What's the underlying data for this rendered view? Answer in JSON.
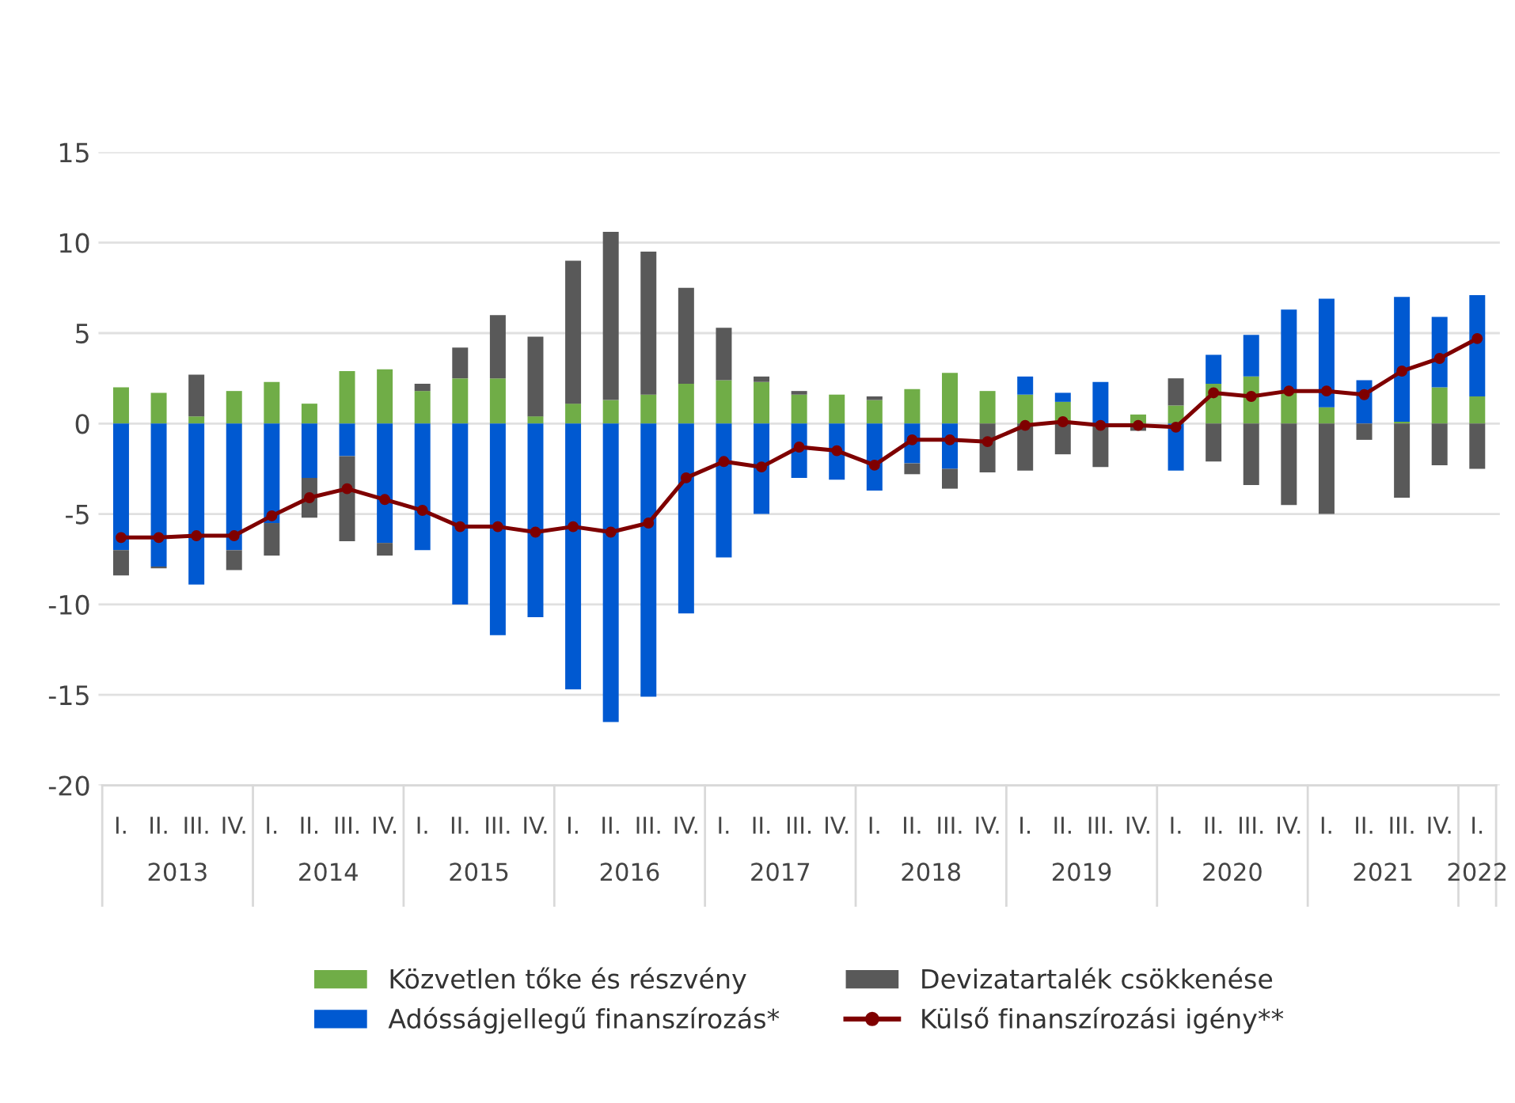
{
  "chart_data": {
    "type": "bar",
    "stacked": true,
    "categories": [
      "I.",
      "II.",
      "III.",
      "IV.",
      "I.",
      "II.",
      "III.",
      "IV.",
      "I.",
      "II.",
      "III.",
      "IV.",
      "I.",
      "II.",
      "III.",
      "IV.",
      "I.",
      "II.",
      "III.",
      "IV.",
      "I.",
      "II.",
      "III.",
      "IV.",
      "I.",
      "II.",
      "III.",
      "IV.",
      "I.",
      "II.",
      "III.",
      "IV.",
      "I.",
      "II.",
      "III.",
      "IV.",
      "I."
    ],
    "annotations": [
      "2013",
      "2014",
      "2015",
      "2016",
      "2017",
      "2018",
      "2019",
      "2020",
      "2021",
      "2022"
    ],
    "series": [
      {
        "name": "Közvetlen tőke és részvény",
        "color": "#70ad47",
        "values": [
          2.0,
          1.7,
          0.4,
          1.8,
          2.3,
          1.1,
          2.9,
          3.0,
          1.8,
          2.5,
          2.5,
          0.4,
          1.1,
          1.3,
          1.6,
          2.2,
          2.4,
          2.3,
          1.6,
          1.6,
          1.3,
          1.9,
          2.8,
          1.8,
          1.6,
          1.2,
          null,
          0.5,
          1.0,
          2.2,
          2.6,
          1.8,
          0.9,
          null,
          0.1,
          2.0,
          1.5
        ]
      },
      {
        "name": "Adósságjellegű finanszírozás*",
        "color": "#0059d1",
        "values": [
          -7.0,
          -7.9,
          -8.9,
          -7.0,
          -5.5,
          -3.0,
          -1.8,
          -6.6,
          -7.0,
          -10.0,
          -11.7,
          -10.7,
          -14.7,
          -16.5,
          -15.1,
          -10.5,
          -7.4,
          -5.0,
          -3.0,
          -3.1,
          -3.7,
          -2.2,
          -2.5,
          null,
          1.0,
          0.5,
          2.3,
          null,
          -2.6,
          1.6,
          2.3,
          4.5,
          6.0,
          2.4,
          6.9,
          3.9,
          5.6
        ]
      },
      {
        "name": "Devizatartalék csökkenése",
        "color": "#595959",
        "values": [
          -1.4,
          -0.1,
          2.3,
          -1.1,
          -1.8,
          -2.2,
          -4.7,
          -0.7,
          0.4,
          1.7,
          3.5,
          4.4,
          7.9,
          9.3,
          7.9,
          5.3,
          2.9,
          0.3,
          0.2,
          null,
          0.2,
          -0.6,
          -1.1,
          -2.7,
          -2.6,
          -1.7,
          -2.4,
          -0.4,
          1.5,
          -2.1,
          -3.4,
          -4.5,
          -5.0,
          -0.9,
          -4.1,
          -2.3,
          -2.5
        ]
      },
      {
        "name": "Külső finanszírozási igény**",
        "color": "#7f0000",
        "type": "line",
        "marker": "circle",
        "values": [
          -6.3,
          -6.3,
          -6.2,
          -6.2,
          -5.1,
          -4.1,
          -3.6,
          -4.2,
          -4.8,
          -5.7,
          -5.7,
          -6.0,
          -5.7,
          -6.0,
          -5.5,
          -3.0,
          -2.1,
          -2.4,
          -1.3,
          -1.5,
          -2.3,
          -0.9,
          -0.9,
          -1.0,
          -0.1,
          0.1,
          -0.1,
          -0.1,
          -0.2,
          1.7,
          1.5,
          1.8,
          1.8,
          1.6,
          2.9,
          3.6,
          4.7
        ]
      }
    ],
    "ylim": [
      -20,
      15
    ],
    "yticks": [
      -20,
      -15,
      -10,
      -5,
      0,
      5,
      10,
      15
    ],
    "grid": "y",
    "legend": "bottom"
  }
}
